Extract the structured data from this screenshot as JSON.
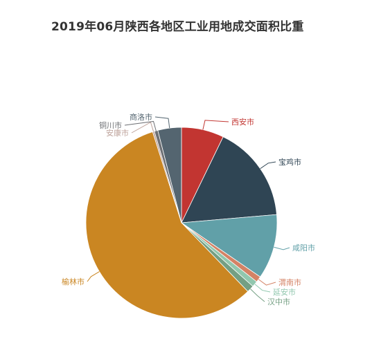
{
  "chart_data": {
    "type": "pie",
    "title": "2019年06月陕西各地区工业用地成交面积比重",
    "slices": [
      {
        "name": "西安市",
        "value": 7.2,
        "color": "#c23531"
      },
      {
        "name": "宝鸡市",
        "value": 16.5,
        "color": "#2f4554"
      },
      {
        "name": "咸阳市",
        "value": 11.0,
        "color": "#61a0a8"
      },
      {
        "name": "渭南市",
        "value": 1.0,
        "color": "#d48265"
      },
      {
        "name": "延安市",
        "value": 1.0,
        "color": "#91c7ae"
      },
      {
        "name": "汉中市",
        "value": 1.2,
        "color": "#749f83"
      },
      {
        "name": "榆林市",
        "value": 57.5,
        "color": "#ca8622"
      },
      {
        "name": "安康市",
        "value": 0.3,
        "color": "#bda29a"
      },
      {
        "name": "铜川市",
        "value": 0.6,
        "color": "#6e7074"
      },
      {
        "name": "商洛市",
        "value": 4.0,
        "color": "#546570"
      }
    ]
  }
}
